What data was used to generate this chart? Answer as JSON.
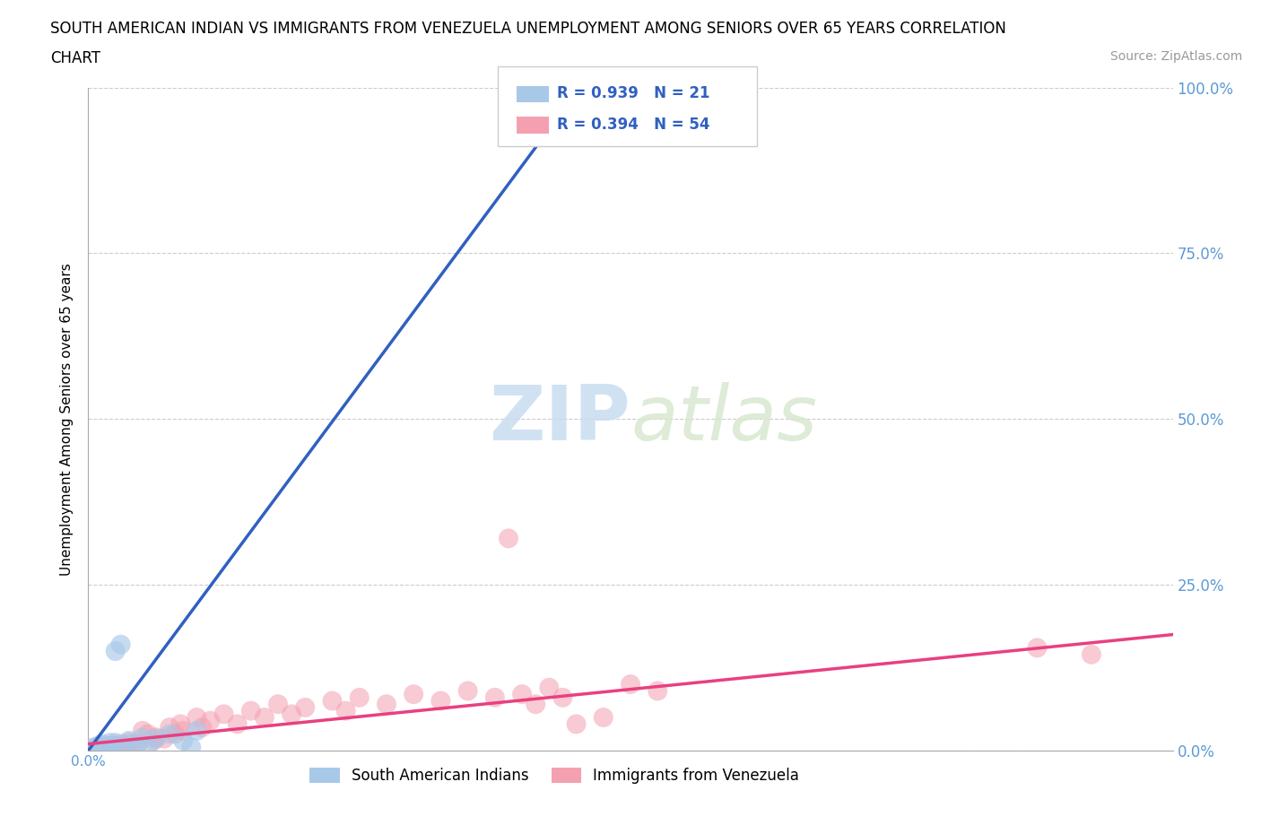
{
  "title_line1": "SOUTH AMERICAN INDIAN VS IMMIGRANTS FROM VENEZUELA UNEMPLOYMENT AMONG SENIORS OVER 65 YEARS CORRELATION",
  "title_line2": "CHART",
  "source": "Source: ZipAtlas.com",
  "ylabel": "Unemployment Among Seniors over 65 years",
  "blue_color": "#a8c8e8",
  "pink_color": "#f4a0b0",
  "blue_line_color": "#3060c0",
  "pink_line_color": "#e84080",
  "R_blue": 0.939,
  "N_blue": 21,
  "R_pink": 0.394,
  "N_pink": 54,
  "legend_text_color": "#3060c0",
  "right_tick_color": "#5b9bd5",
  "xlim": [
    0.0,
    0.4
  ],
  "ylim": [
    0.0,
    1.0
  ],
  "yticks": [
    0.0,
    0.25,
    0.5,
    0.75,
    1.0
  ],
  "ytick_labels": [
    "0.0%",
    "25.0%",
    "50.0%",
    "75.0%",
    "100.0%"
  ],
  "blue_scatter_x": [
    0.002,
    0.003,
    0.004,
    0.005,
    0.006,
    0.007,
    0.008,
    0.009,
    0.01,
    0.012,
    0.013,
    0.015,
    0.018,
    0.02,
    0.022,
    0.025,
    0.03,
    0.035,
    0.038,
    0.04,
    0.01
  ],
  "blue_scatter_y": [
    0.005,
    0.003,
    0.008,
    0.01,
    0.006,
    0.004,
    0.012,
    0.007,
    0.15,
    0.16,
    0.008,
    0.015,
    0.01,
    0.02,
    0.005,
    0.018,
    0.025,
    0.015,
    0.005,
    0.03,
    0.012
  ],
  "pink_scatter_x": [
    0.002,
    0.003,
    0.004,
    0.005,
    0.006,
    0.007,
    0.008,
    0.009,
    0.01,
    0.011,
    0.012,
    0.013,
    0.014,
    0.015,
    0.016,
    0.018,
    0.02,
    0.022,
    0.024,
    0.025,
    0.028,
    0.03,
    0.032,
    0.034,
    0.035,
    0.04,
    0.042,
    0.045,
    0.05,
    0.055,
    0.06,
    0.065,
    0.07,
    0.075,
    0.08,
    0.09,
    0.095,
    0.1,
    0.11,
    0.12,
    0.13,
    0.14,
    0.15,
    0.155,
    0.16,
    0.165,
    0.17,
    0.175,
    0.2,
    0.35,
    0.37,
    0.18,
    0.19,
    0.21
  ],
  "pink_scatter_y": [
    0.003,
    0.005,
    0.004,
    0.006,
    0.003,
    0.007,
    0.005,
    0.004,
    0.008,
    0.006,
    0.01,
    0.008,
    0.006,
    0.012,
    0.01,
    0.008,
    0.03,
    0.025,
    0.015,
    0.02,
    0.018,
    0.035,
    0.025,
    0.04,
    0.03,
    0.05,
    0.035,
    0.045,
    0.055,
    0.04,
    0.06,
    0.05,
    0.07,
    0.055,
    0.065,
    0.075,
    0.06,
    0.08,
    0.07,
    0.085,
    0.075,
    0.09,
    0.08,
    0.32,
    0.085,
    0.07,
    0.095,
    0.08,
    0.1,
    0.155,
    0.145,
    0.04,
    0.05,
    0.09
  ],
  "blue_line_x": [
    0.0,
    0.185
  ],
  "blue_line_y": [
    0.0,
    1.02
  ],
  "pink_line_x": [
    0.0,
    0.4
  ],
  "pink_line_y": [
    0.01,
    0.175
  ]
}
